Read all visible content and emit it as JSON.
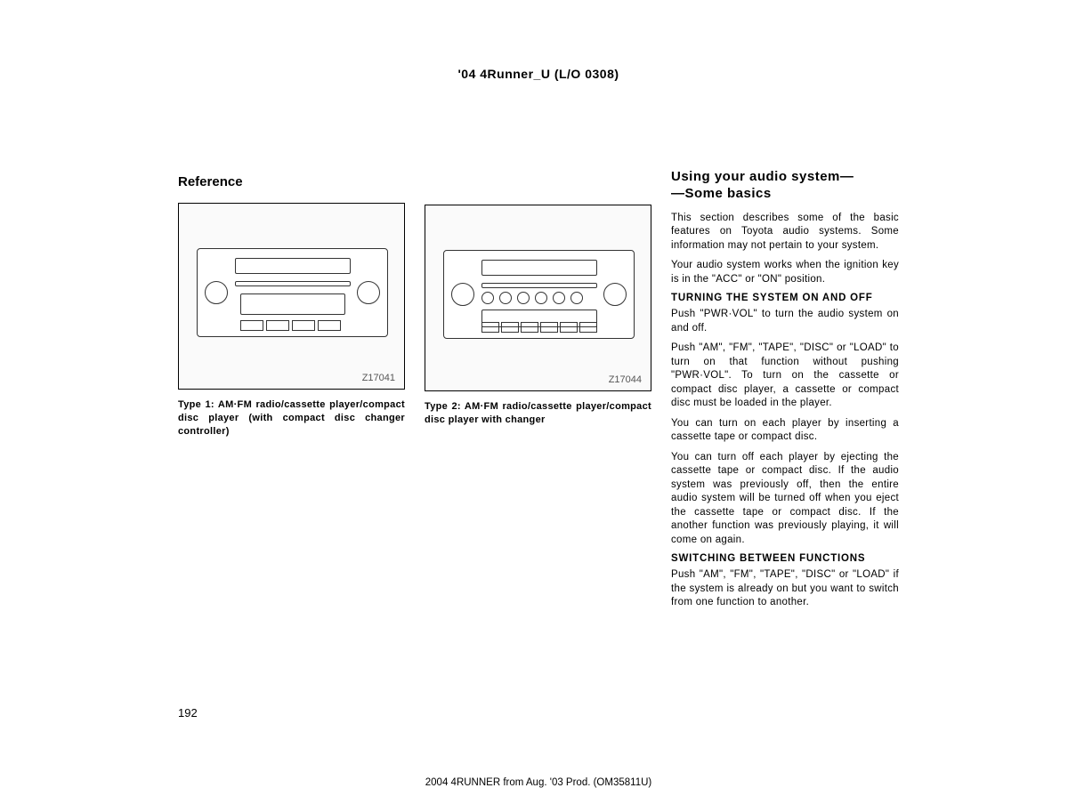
{
  "header": {
    "title": "'04 4Runner_U (L/O 0308)"
  },
  "left": {
    "heading": "Reference",
    "fig_label": "Z17041",
    "caption": "Type 1: AM·FM radio/cassette player/compact disc player (with compact disc changer controller)"
  },
  "mid": {
    "fig_label": "Z17044",
    "caption": "Type 2: AM·FM radio/cassette player/compact disc player with changer"
  },
  "right": {
    "heading": "Using your audio system—\n—Some basics",
    "p1": "This section describes some of the basic features on Toyota audio systems. Some information may not pertain to your system.",
    "p2": "Your audio system works when the ignition key is in the \"ACC\" or \"ON\" position.",
    "sub1": "TURNING THE SYSTEM ON AND OFF",
    "p3": "Push \"PWR·VOL\" to turn the audio system on and off.",
    "p4": "Push \"AM\", \"FM\", \"TAPE\", \"DISC\" or \"LOAD\" to turn on that function without pushing \"PWR·VOL\". To turn on the cassette or compact disc player, a cassette or compact disc must be loaded in the player.",
    "p5": "You can turn on each player by inserting a cassette tape or compact disc.",
    "p6": "You can turn off each player by ejecting the cassette tape or compact disc. If the audio system was previously off, then the entire audio system will be turned off when you eject the cassette tape or compact disc. If the another function was previously playing, it will come on again.",
    "sub2": "SWITCHING BETWEEN FUNCTIONS",
    "p7": "Push \"AM\", \"FM\", \"TAPE\", \"DISC\" or \"LOAD\" if the system is already on but you want to switch from one function to another."
  },
  "page_number": "192",
  "footer": "2004 4RUNNER from Aug. '03 Prod. (OM35811U)"
}
